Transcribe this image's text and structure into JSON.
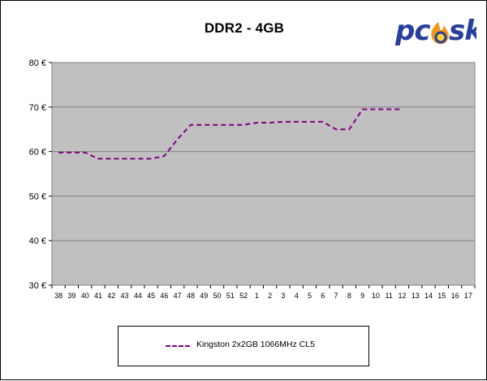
{
  "logo": {
    "text_left": "pc",
    "text_right": "sk"
  },
  "chart_data": {
    "type": "line",
    "title": "DDR2 - 4GB",
    "xlabel": "",
    "ylabel": "",
    "categories": [
      "38",
      "39",
      "40",
      "41",
      "42",
      "43",
      "44",
      "45",
      "46",
      "47",
      "48",
      "49",
      "50",
      "51",
      "52",
      "1",
      "2",
      "3",
      "4",
      "5",
      "6",
      "7",
      "8",
      "9",
      "10",
      "11",
      "12",
      "13",
      "14",
      "15",
      "16",
      "17"
    ],
    "y_tick_labels": [
      "30 €",
      "40 €",
      "50 €",
      "60 €",
      "70 €",
      "80 €"
    ],
    "ylim": [
      30,
      80
    ],
    "grid": true,
    "legend_position": "bottom",
    "series": [
      {
        "name": "Kingston 2x2GB 1066MHz CL5",
        "color": "#800080",
        "style": "dashed",
        "values": [
          59.8,
          59.8,
          59.8,
          58.4,
          58.4,
          58.4,
          58.4,
          58.4,
          59.0,
          62.8,
          66.0,
          66.0,
          66.0,
          66.0,
          66.0,
          66.5,
          66.5,
          66.7,
          66.7,
          66.7,
          66.7,
          65.0,
          65.0,
          69.5,
          69.5,
          69.5,
          69.5,
          null,
          null,
          null,
          null,
          null
        ]
      }
    ]
  }
}
